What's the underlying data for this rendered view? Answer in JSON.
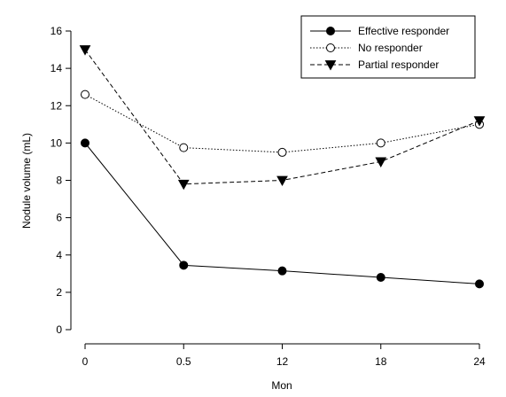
{
  "chart_data": {
    "type": "line",
    "title": "",
    "xlabel": "Mon",
    "ylabel": "Nodule volume (mL)",
    "categories": [
      "0",
      "0.5",
      "12",
      "18",
      "24"
    ],
    "ylim": [
      0,
      16
    ],
    "yticks": [
      "0",
      "2",
      "4",
      "6",
      "8",
      "10",
      "12",
      "14",
      "16"
    ],
    "grid": false,
    "legend": "top-right",
    "series": [
      {
        "name": "Effective responder",
        "values": [
          10.0,
          3.45,
          3.15,
          2.8,
          2.45
        ],
        "marker": "filled-circle",
        "line": "solid",
        "color": "#000000"
      },
      {
        "name": "No responder",
        "values": [
          12.6,
          9.75,
          9.5,
          10.0,
          11.0
        ],
        "marker": "open-circle",
        "line": "dotted",
        "color": "#000000"
      },
      {
        "name": "Partial responder",
        "values": [
          15.0,
          7.8,
          8.0,
          9.0,
          11.2
        ],
        "marker": "filled-triangle-down",
        "line": "dashed",
        "color": "#000000"
      }
    ]
  }
}
